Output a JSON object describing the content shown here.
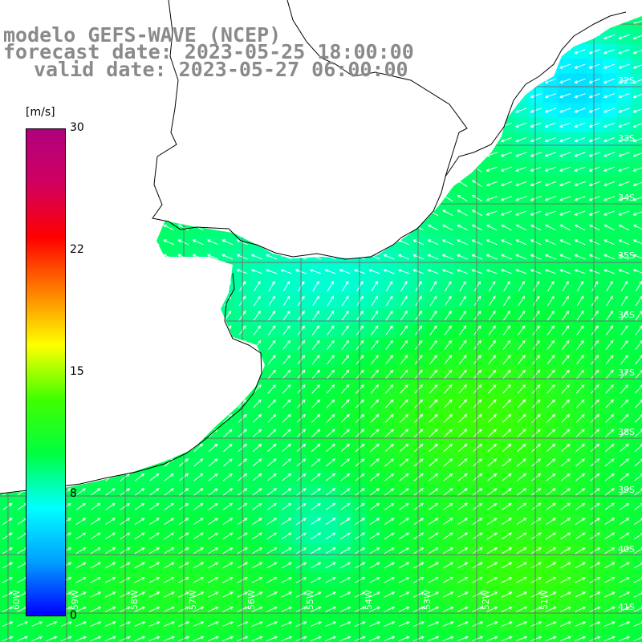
{
  "title": {
    "line1": "modelo GEFS-WAVE (NCEP)",
    "line2": "forecast date: 2023-05-25 18:00:00",
    "line3": "valid date: 2023-05-27 06:00:00"
  },
  "map": {
    "lon_range": [
      -60,
      -49.5
    ],
    "lat_range": [
      -41.5,
      -30.5
    ],
    "grid_lon": [
      -60,
      -59,
      -58,
      -57,
      -56,
      -55,
      -54,
      -53,
      -52,
      -51,
      -50
    ],
    "grid_lat": [
      -41,
      -40,
      -39,
      -38,
      -37,
      -36,
      -35,
      -34,
      -33,
      -32,
      -31
    ],
    "colors": {
      "land": "#ffffff",
      "coastline": "#000000",
      "grid": "#707070",
      "arrow": "#ffffff"
    }
  },
  "colorbar": {
    "unit": "[m/s]",
    "min": 0,
    "max": 30,
    "ticks": [
      {
        "value": 30,
        "label": "30"
      },
      {
        "value": 22,
        "label": "22"
      },
      {
        "value": 15,
        "label": "15"
      },
      {
        "value": 8,
        "label": "8"
      },
      {
        "value": 0,
        "label": "0"
      }
    ],
    "stops": [
      "#0000ff",
      "#00a0ff",
      "#00ffff",
      "#00ff40",
      "#40ff00",
      "#ffff00",
      "#ff8000",
      "#ff0000",
      "#d00060",
      "#b0007f"
    ]
  },
  "lat_labels": [
    "32S",
    "33S",
    "34S",
    "35S",
    "36S",
    "37S",
    "38S",
    "39S",
    "40S",
    "41S"
  ],
  "lon_labels": [
    "60W",
    "59W",
    "58W",
    "57W",
    "56W",
    "55W",
    "54W",
    "53W",
    "52W",
    "51W"
  ]
}
